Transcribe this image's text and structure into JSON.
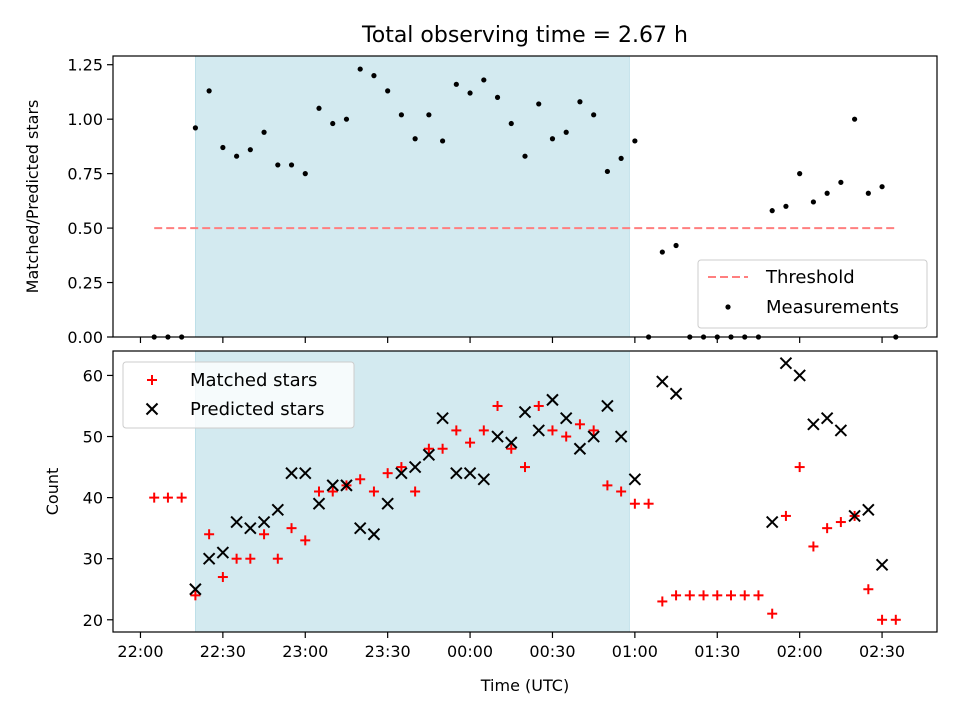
{
  "chart_data": [
    {
      "type": "scatter",
      "title": "Total observing time = 2.67 h",
      "xlabel": "",
      "ylabel": "Matched/Predicted stars",
      "ylim": [
        0,
        1.29
      ],
      "yticks": [
        "0.00",
        "0.25",
        "0.50",
        "0.75",
        "1.00",
        "1.25"
      ],
      "ytick_values": [
        0,
        0.25,
        0.5,
        0.75,
        1.0,
        1.25
      ],
      "legend_position": "lower-right",
      "shaded_span": [
        "22:20",
        "00:58"
      ],
      "shade_color": "#d3eaf0",
      "series": [
        {
          "name": "Threshold",
          "style": "dashed-line",
          "color": "#ff7f7f",
          "x": [
            "22:05",
            "02:35"
          ],
          "values": [
            0.5,
            0.5
          ]
        },
        {
          "name": "Measurements",
          "style": "dot",
          "color": "#000000",
          "x": [
            "22:05",
            "22:10",
            "22:15",
            "22:20",
            "22:25",
            "22:30",
            "22:35",
            "22:40",
            "22:45",
            "22:50",
            "22:55",
            "23:00",
            "23:05",
            "23:10",
            "23:15",
            "23:20",
            "23:25",
            "23:30",
            "23:35",
            "23:40",
            "23:45",
            "23:50",
            "23:55",
            "00:00",
            "00:05",
            "00:10",
            "00:15",
            "00:20",
            "00:25",
            "00:30",
            "00:35",
            "00:40",
            "00:45",
            "00:50",
            "00:55",
            "01:00",
            "01:05",
            "01:10",
            "01:15",
            "01:20",
            "01:25",
            "01:30",
            "01:35",
            "01:40",
            "01:45",
            "01:50",
            "01:55",
            "02:00",
            "02:05",
            "02:10",
            "02:15",
            "02:20",
            "02:25",
            "02:30",
            "02:35"
          ],
          "values": [
            0,
            0,
            0,
            0.96,
            1.13,
            0.87,
            0.83,
            0.86,
            0.94,
            0.79,
            0.79,
            0.75,
            1.05,
            0.98,
            1.0,
            1.23,
            1.2,
            1.13,
            1.02,
            0.91,
            1.02,
            0.9,
            1.16,
            1.12,
            1.18,
            1.1,
            0.98,
            0.83,
            1.07,
            0.91,
            0.94,
            1.08,
            1.02,
            0.76,
            0.82,
            0.9,
            0,
            0.39,
            0.42,
            0,
            0,
            0,
            0,
            0,
            0,
            0.58,
            0.6,
            0.75,
            0.62,
            0.66,
            0.71,
            1.0,
            0.66,
            0.69,
            0
          ]
        }
      ]
    },
    {
      "type": "scatter",
      "title": "",
      "xlabel": "Time (UTC)",
      "ylabel": "Count",
      "ylim": [
        18,
        64
      ],
      "yticks": [
        "20",
        "30",
        "40",
        "50",
        "60"
      ],
      "ytick_values": [
        20,
        30,
        40,
        50,
        60
      ],
      "xlim": [
        "21:50",
        "02:50"
      ],
      "xticks": [
        "22:00",
        "22:30",
        "23:00",
        "23:30",
        "00:00",
        "00:30",
        "01:00",
        "01:30",
        "02:00",
        "02:30"
      ],
      "legend_position": "upper-left",
      "shaded_span": [
        "22:20",
        "00:58"
      ],
      "shade_color": "#d3eaf0",
      "series": [
        {
          "name": "Matched stars",
          "style": "plus",
          "color": "#ff0000",
          "x": [
            "22:05",
            "22:10",
            "22:15",
            "22:20",
            "22:25",
            "22:30",
            "22:35",
            "22:40",
            "22:45",
            "22:50",
            "22:55",
            "23:00",
            "23:05",
            "23:10",
            "23:15",
            "23:20",
            "23:25",
            "23:30",
            "23:35",
            "23:40",
            "23:45",
            "23:50",
            "23:55",
            "00:00",
            "00:05",
            "00:10",
            "00:15",
            "00:20",
            "00:25",
            "00:30",
            "00:35",
            "00:40",
            "00:45",
            "00:50",
            "00:55",
            "01:00",
            "01:05",
            "01:10",
            "01:15",
            "01:20",
            "01:25",
            "01:30",
            "01:35",
            "01:40",
            "01:45",
            "01:50",
            "01:55",
            "02:00",
            "02:05",
            "02:10",
            "02:15",
            "02:20",
            "02:25",
            "02:30",
            "02:35"
          ],
          "values": [
            40,
            40,
            40,
            24,
            34,
            27,
            30,
            30,
            34,
            30,
            35,
            33,
            41,
            41,
            42,
            43,
            41,
            44,
            45,
            41,
            48,
            48,
            51,
            49,
            51,
            55,
            48,
            45,
            55,
            51,
            50,
            52,
            51,
            42,
            41,
            39,
            39,
            23,
            24,
            24,
            24,
            24,
            24,
            24,
            24,
            21,
            37,
            45,
            32,
            35,
            36,
            37,
            25,
            20,
            20
          ]
        },
        {
          "name": "Predicted stars",
          "style": "x",
          "color": "#000000",
          "x": [
            "22:20",
            "22:25",
            "22:30",
            "22:35",
            "22:40",
            "22:45",
            "22:50",
            "22:55",
            "23:00",
            "23:05",
            "23:10",
            "23:15",
            "23:20",
            "23:25",
            "23:30",
            "23:35",
            "23:40",
            "23:45",
            "23:50",
            "23:55",
            "00:00",
            "00:05",
            "00:10",
            "00:15",
            "00:20",
            "00:25",
            "00:30",
            "00:35",
            "00:40",
            "00:45",
            "00:50",
            "00:55",
            "01:00",
            "01:10",
            "01:15",
            "01:50",
            "01:55",
            "02:00",
            "02:05",
            "02:10",
            "02:15",
            "02:20",
            "02:25",
            "02:30"
          ],
          "values": [
            25,
            30,
            31,
            36,
            35,
            36,
            38,
            44,
            44,
            39,
            42,
            42,
            35,
            34,
            39,
            44,
            45,
            47,
            53,
            44,
            44,
            43,
            50,
            49,
            54,
            51,
            56,
            53,
            48,
            50,
            55,
            50,
            43,
            59,
            57,
            36,
            62,
            60,
            52,
            53,
            51,
            37,
            38,
            29
          ]
        }
      ]
    }
  ]
}
